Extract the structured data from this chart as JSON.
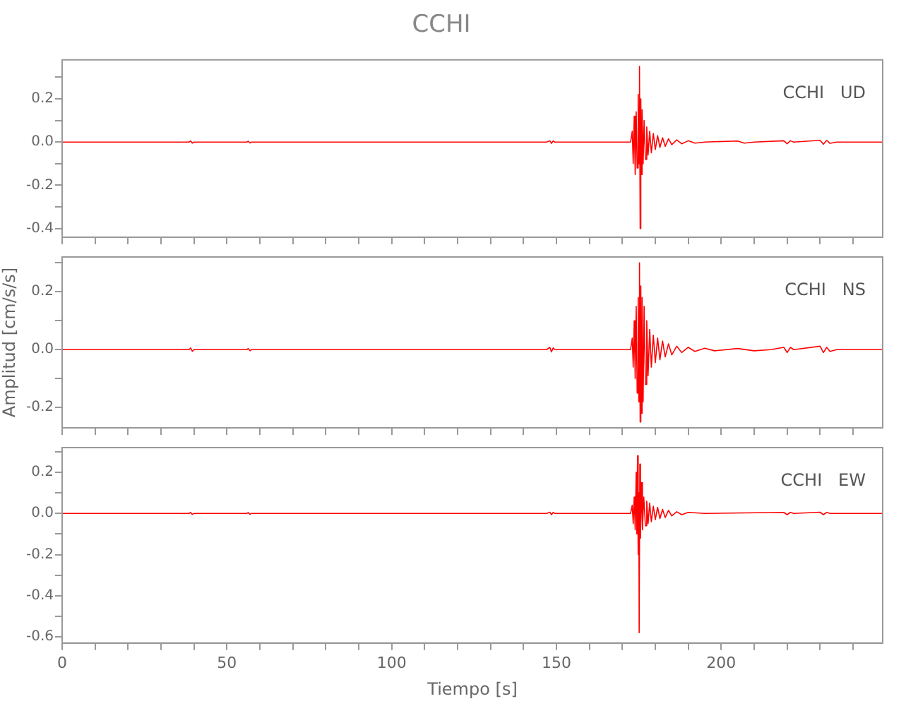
{
  "chart_data": [
    {
      "type": "line",
      "title": "CCHI",
      "annotations": [
        "CCHI   UD"
      ],
      "xlim": [
        0,
        249
      ],
      "xticks": [
        0,
        {
          "value": 10,
          "label": null
        },
        {
          "value": 20,
          "label": null
        },
        {
          "value": 30,
          "label": null
        },
        {
          "value": 40,
          "label": null
        },
        50,
        {
          "value": 60,
          "label": null
        },
        {
          "value": 70,
          "label": null
        },
        {
          "value": 80,
          "label": null
        },
        {
          "value": 90,
          "label": null
        },
        100,
        {
          "value": 110,
          "label": null
        },
        {
          "value": 120,
          "label": null
        },
        {
          "value": 130,
          "label": null
        },
        {
          "value": 140,
          "label": null
        },
        150,
        {
          "value": 160,
          "label": null
        },
        {
          "value": 170,
          "label": null
        },
        {
          "value": 180,
          "label": null
        },
        {
          "value": 190,
          "label": null
        },
        200,
        {
          "value": 210,
          "label": null
        },
        {
          "value": 220,
          "label": null
        },
        {
          "value": 230,
          "label": null
        },
        {
          "value": 240,
          "label": null
        }
      ],
      "ylim": [
        -0.44,
        0.38
      ],
      "yticks": [
        -0.4,
        {
          "value": -0.3,
          "label": null
        },
        -0.2,
        {
          "value": -0.1,
          "label": null
        },
        {
          "value": 0,
          "label": "0.0"
        },
        {
          "value": 0.1,
          "label": null
        },
        0.2,
        {
          "value": 0.3,
          "label": null
        }
      ],
      "tick_labels": "y",
      "marker": "none",
      "series": [
        {
          "color": "#ff0000",
          "x": [
            0,
            38.5,
            39,
            39.5,
            40,
            56,
            56.5,
            57,
            57.5,
            147,
            148,
            148.5,
            149,
            149.5,
            172.5,
            173,
            173.3,
            173.6,
            173.9,
            174.2,
            174.5,
            174.8,
            175,
            175.2,
            175.4,
            175.6,
            175.8,
            176,
            176.3,
            176.6,
            177,
            177.4,
            177.8,
            178.3,
            178.8,
            179.4,
            180,
            180.7,
            181.4,
            182.2,
            183,
            184,
            185,
            186.5,
            188,
            190,
            192,
            195,
            205,
            207,
            210,
            219,
            220,
            221,
            222,
            230,
            231,
            232,
            233,
            235,
            249
          ],
          "values": [
            0,
            0,
            0.005,
            -0.005,
            0,
            0,
            0.004,
            -0.004,
            0,
            0,
            0.006,
            -0.006,
            0.005,
            0,
            0,
            0.05,
            -0.1,
            0.12,
            -0.15,
            0.14,
            -0.12,
            0.22,
            -0.1,
            0.35,
            -0.4,
            0.2,
            -0.15,
            0.15,
            -0.1,
            0.1,
            -0.08,
            0.07,
            -0.06,
            0.05,
            -0.05,
            0.04,
            -0.035,
            0.03,
            -0.025,
            0.02,
            -0.02,
            0.015,
            -0.012,
            0.01,
            -0.008,
            0.006,
            -0.005,
            0,
            0.005,
            -0.005,
            0,
            0.006,
            -0.008,
            0.006,
            0,
            0.008,
            -0.01,
            0.008,
            -0.006,
            0,
            0
          ]
        }
      ]
    },
    {
      "type": "line",
      "ylabel": "Amplitud [cm/s/s]",
      "annotations": [
        "CCHI   NS"
      ],
      "xlim": [
        0,
        249
      ],
      "xticks": [
        0,
        {
          "value": 10,
          "label": null
        },
        {
          "value": 20,
          "label": null
        },
        {
          "value": 30,
          "label": null
        },
        {
          "value": 40,
          "label": null
        },
        50,
        {
          "value": 60,
          "label": null
        },
        {
          "value": 70,
          "label": null
        },
        {
          "value": 80,
          "label": null
        },
        {
          "value": 90,
          "label": null
        },
        100,
        {
          "value": 110,
          "label": null
        },
        {
          "value": 120,
          "label": null
        },
        {
          "value": 130,
          "label": null
        },
        {
          "value": 140,
          "label": null
        },
        150,
        {
          "value": 160,
          "label": null
        },
        {
          "value": 170,
          "label": null
        },
        {
          "value": 180,
          "label": null
        },
        {
          "value": 190,
          "label": null
        },
        200,
        {
          "value": 210,
          "label": null
        },
        {
          "value": 220,
          "label": null
        },
        {
          "value": 230,
          "label": null
        },
        {
          "value": 240,
          "label": null
        }
      ],
      "ylim": [
        -0.27,
        0.32
      ],
      "yticks": [
        -0.2,
        {
          "value": -0.1,
          "label": null
        },
        {
          "value": 0,
          "label": "0.0"
        },
        {
          "value": 0.1,
          "label": null
        },
        0.2,
        {
          "value": 0.3,
          "label": null
        }
      ],
      "tick_labels": "y",
      "marker": "none",
      "series": [
        {
          "color": "#ff0000",
          "x": [
            0,
            38.5,
            39,
            39.5,
            40,
            56,
            56.5,
            57,
            57.5,
            147,
            148,
            148.5,
            149,
            149.5,
            172.5,
            173,
            173.3,
            173.6,
            173.9,
            174.2,
            174.5,
            174.8,
            175,
            175.2,
            175.4,
            175.6,
            175.8,
            176,
            176.3,
            176.6,
            177,
            177.4,
            177.8,
            178.3,
            178.8,
            179.4,
            180,
            180.7,
            181.4,
            182.2,
            183,
            184,
            185,
            186.5,
            188,
            190,
            192,
            195,
            198,
            205,
            210,
            215,
            219,
            220,
            221,
            222,
            230,
            231,
            232,
            233,
            235,
            249
          ],
          "values": [
            0,
            0,
            0.006,
            -0.006,
            0,
            0,
            0.004,
            -0.004,
            0,
            0,
            0.008,
            -0.008,
            0.006,
            0,
            0,
            0.04,
            -0.06,
            0.1,
            -0.1,
            0.15,
            -0.15,
            0.18,
            -0.18,
            0.3,
            -0.25,
            0.22,
            -0.22,
            0.18,
            -0.18,
            0.15,
            -0.12,
            0.1,
            -0.09,
            0.07,
            -0.06,
            0.05,
            -0.045,
            0.04,
            -0.035,
            0.03,
            -0.025,
            0.02,
            -0.018,
            0.012,
            -0.01,
            0.008,
            -0.006,
            0.005,
            -0.004,
            0.004,
            -0.004,
            0,
            0.008,
            -0.01,
            0.008,
            0,
            0.012,
            -0.01,
            0.008,
            -0.006,
            0,
            0
          ]
        }
      ]
    },
    {
      "type": "line",
      "xlabel": "Tiempo [s]",
      "annotations": [
        "CCHI   EW"
      ],
      "xlim": [
        0,
        249
      ],
      "xticks": [
        0,
        {
          "value": 10,
          "label": null
        },
        {
          "value": 20,
          "label": null
        },
        {
          "value": 30,
          "label": null
        },
        {
          "value": 40,
          "label": null
        },
        50,
        {
          "value": 60,
          "label": null
        },
        {
          "value": 70,
          "label": null
        },
        {
          "value": 80,
          "label": null
        },
        {
          "value": 90,
          "label": null
        },
        100,
        {
          "value": 110,
          "label": null
        },
        {
          "value": 120,
          "label": null
        },
        {
          "value": 130,
          "label": null
        },
        {
          "value": 140,
          "label": null
        },
        150,
        {
          "value": 160,
          "label": null
        },
        {
          "value": 170,
          "label": null
        },
        {
          "value": 180,
          "label": null
        },
        {
          "value": 190,
          "label": null
        },
        200,
        {
          "value": 210,
          "label": null
        },
        {
          "value": 220,
          "label": null
        },
        {
          "value": 230,
          "label": null
        },
        {
          "value": 240,
          "label": null
        }
      ],
      "ylim": [
        -0.63,
        0.32
      ],
      "yticks": [
        -0.6,
        {
          "value": -0.5,
          "label": null
        },
        -0.4,
        {
          "value": -0.3,
          "label": null
        },
        -0.2,
        {
          "value": -0.1,
          "label": null
        },
        {
          "value": 0,
          "label": "0.0"
        },
        {
          "value": 0.1,
          "label": null
        },
        0.2,
        {
          "value": 0.3,
          "label": null
        }
      ],
      "marker": "none",
      "series": [
        {
          "color": "#ff0000",
          "x": [
            0,
            38.5,
            39,
            39.5,
            40,
            56,
            56.5,
            57,
            57.5,
            147,
            148,
            148.5,
            149,
            149.5,
            172.5,
            173,
            173.3,
            173.6,
            173.9,
            174.2,
            174.4,
            174.6,
            174.8,
            175,
            175.1,
            175.3,
            175.5,
            175.8,
            176.1,
            176.5,
            177,
            177.4,
            177.8,
            178.3,
            178.8,
            179.4,
            180,
            180.7,
            181.4,
            182.2,
            183,
            184,
            185,
            186.5,
            188,
            190,
            195,
            219,
            220,
            221,
            222,
            230,
            231,
            232,
            233,
            249
          ],
          "values": [
            0,
            0,
            0.005,
            -0.005,
            0,
            0,
            0.004,
            -0.004,
            0,
            0,
            0.006,
            -0.006,
            0.005,
            0,
            0,
            0.04,
            -0.05,
            0.08,
            -0.08,
            0.2,
            -0.1,
            0.28,
            -0.2,
            0.1,
            -0.58,
            0.24,
            -0.12,
            0.15,
            -0.08,
            0.08,
            -0.06,
            0.06,
            -0.05,
            0.05,
            -0.04,
            0.035,
            -0.03,
            0.03,
            -0.025,
            0.02,
            -0.02,
            0.015,
            -0.012,
            0.008,
            -0.006,
            0.005,
            0,
            0.005,
            -0.006,
            0.005,
            0,
            0.006,
            -0.006,
            0.005,
            0,
            0
          ]
        }
      ]
    }
  ]
}
